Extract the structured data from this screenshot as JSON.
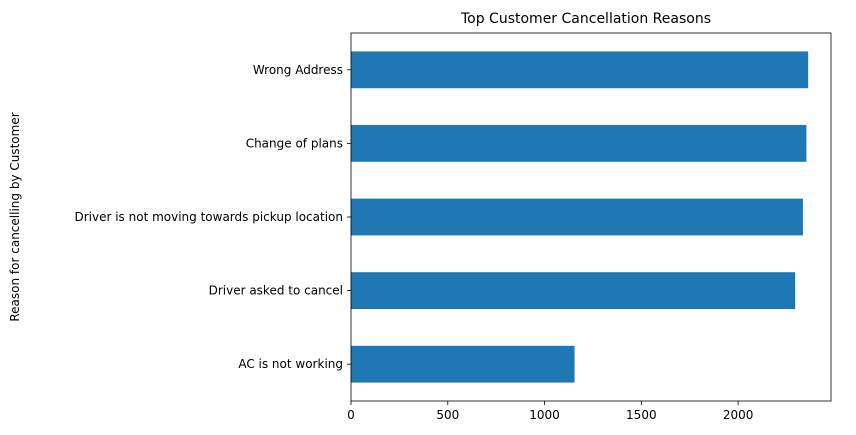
{
  "chart_data": {
    "type": "bar",
    "orientation": "horizontal",
    "title": "Top Customer Cancellation Reasons",
    "xlabel": "",
    "ylabel": "Reason for cancelling by Customer",
    "categories": [
      "AC is not working",
      "Driver asked to cancel",
      "Driver is not moving towards pickup location",
      "Change of plans",
      "Wrong Address"
    ],
    "values": [
      1155,
      2295,
      2335,
      2353,
      2362
    ],
    "xlim": [
      0,
      2480
    ],
    "xticks": [
      0,
      500,
      1000,
      1500,
      2000
    ],
    "bar_color": "#1f77b4",
    "grid": false,
    "legend": "none"
  }
}
